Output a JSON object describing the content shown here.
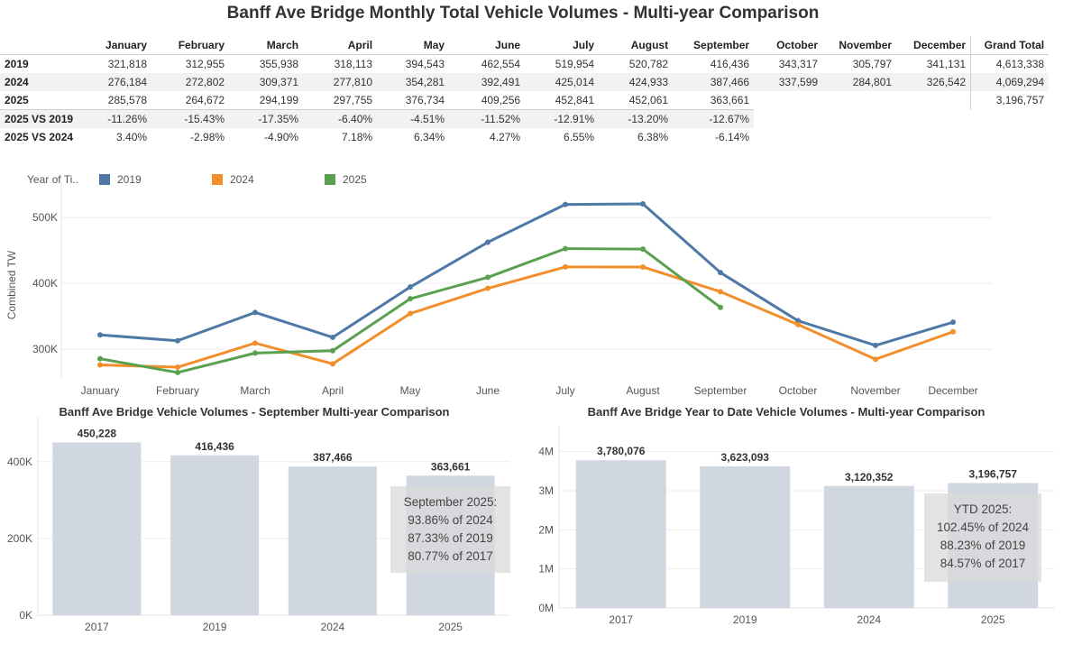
{
  "title": "Banff Ave Bridge Monthly Total Vehicle Volumes - Multi-year Comparison",
  "table": {
    "columns": [
      "January",
      "February",
      "March",
      "April",
      "May",
      "June",
      "July",
      "August",
      "September",
      "October",
      "November",
      "December",
      "Grand Total"
    ],
    "rows": [
      {
        "label": "2019",
        "values": [
          "321,818",
          "312,955",
          "355,938",
          "318,113",
          "394,543",
          "462,554",
          "519,954",
          "520,782",
          "416,436",
          "343,317",
          "305,797",
          "341,131",
          "4,613,338"
        ]
      },
      {
        "label": "2024",
        "values": [
          "276,184",
          "272,802",
          "309,371",
          "277,810",
          "354,281",
          "392,491",
          "425,014",
          "424,933",
          "387,466",
          "337,599",
          "284,801",
          "326,542",
          "4,069,294"
        ]
      },
      {
        "label": "2025",
        "values": [
          "285,578",
          "264,672",
          "294,199",
          "297,755",
          "376,734",
          "409,256",
          "452,841",
          "452,061",
          "363,661",
          "",
          "",
          "",
          "3,196,757"
        ]
      },
      {
        "label": "2025 VS 2019",
        "values": [
          "-11.26%",
          "-15.43%",
          "-17.35%",
          "-6.40%",
          "-4.51%",
          "-11.52%",
          "-12.91%",
          "-13.20%",
          "-12.67%"
        ]
      },
      {
        "label": "2025 VS 2024",
        "values": [
          "3.40%",
          "-2.98%",
          "-4.90%",
          "7.18%",
          "6.34%",
          "4.27%",
          "6.55%",
          "6.38%",
          "-6.14%"
        ]
      }
    ]
  },
  "chart_data": [
    {
      "type": "line",
      "title": "",
      "xlabel": "",
      "ylabel": "Combined TW",
      "legend_title": "Year of Ti..",
      "legend_position": "top-left",
      "categories": [
        "January",
        "February",
        "March",
        "April",
        "May",
        "June",
        "July",
        "August",
        "September",
        "October",
        "November",
        "December"
      ],
      "ylim": [
        255000,
        540000
      ],
      "yticks": [
        300000,
        400000,
        500000
      ],
      "ytick_labels": [
        "300K",
        "400K",
        "500K"
      ],
      "grid": true,
      "series": [
        {
          "name": "2019",
          "color": "#4e79a7",
          "values": [
            321818,
            312955,
            355938,
            318113,
            394543,
            462554,
            519954,
            520782,
            416436,
            343317,
            305797,
            341131
          ]
        },
        {
          "name": "2024",
          "color": "#f28e2b",
          "values": [
            276184,
            272802,
            309371,
            277810,
            354281,
            392491,
            425014,
            424933,
            387466,
            337599,
            284801,
            326542
          ]
        },
        {
          "name": "2025",
          "color": "#59a14f",
          "values": [
            285578,
            264672,
            294199,
            297755,
            376734,
            409256,
            452841,
            452061,
            363661,
            null,
            null,
            null
          ]
        }
      ]
    },
    {
      "type": "bar",
      "title": "Banff Ave Bridge Vehicle Volumes - September Multi-year Comparison",
      "categories": [
        "2017",
        "2019",
        "2024",
        "2025"
      ],
      "values": [
        450228,
        416436,
        387466,
        363661
      ],
      "value_labels": [
        "450,228",
        "416,436",
        "387,466",
        "363,661"
      ],
      "ylim": [
        0,
        470000
      ],
      "yticks": [
        0,
        200000,
        400000
      ],
      "ytick_labels": [
        "0K",
        "200K",
        "400K"
      ],
      "color": "#d0d7e1",
      "annotation": [
        "September 2025:",
        "93.86% of 2024",
        "87.33% of 2019",
        "80.77% of 2017"
      ]
    },
    {
      "type": "bar",
      "title": "Banff Ave Bridge Year to Date Vehicle Volumes - Multi-year Comparison",
      "categories": [
        "2017",
        "2019",
        "2024",
        "2025"
      ],
      "values": [
        3780076,
        3623093,
        3120352,
        3196757
      ],
      "value_labels": [
        "3,780,076",
        "3,623,093",
        "3,120,352",
        "3,196,757"
      ],
      "ylim": [
        0,
        4200000
      ],
      "yticks": [
        0,
        1000000,
        2000000,
        3000000,
        4000000
      ],
      "ytick_labels": [
        "0M",
        "1M",
        "2M",
        "3M",
        "4M"
      ],
      "color": "#d0d7e1",
      "annotation": [
        "YTD 2025:",
        "102.45% of 2024",
        "88.23% of 2019",
        "84.57% of 2017"
      ]
    }
  ]
}
